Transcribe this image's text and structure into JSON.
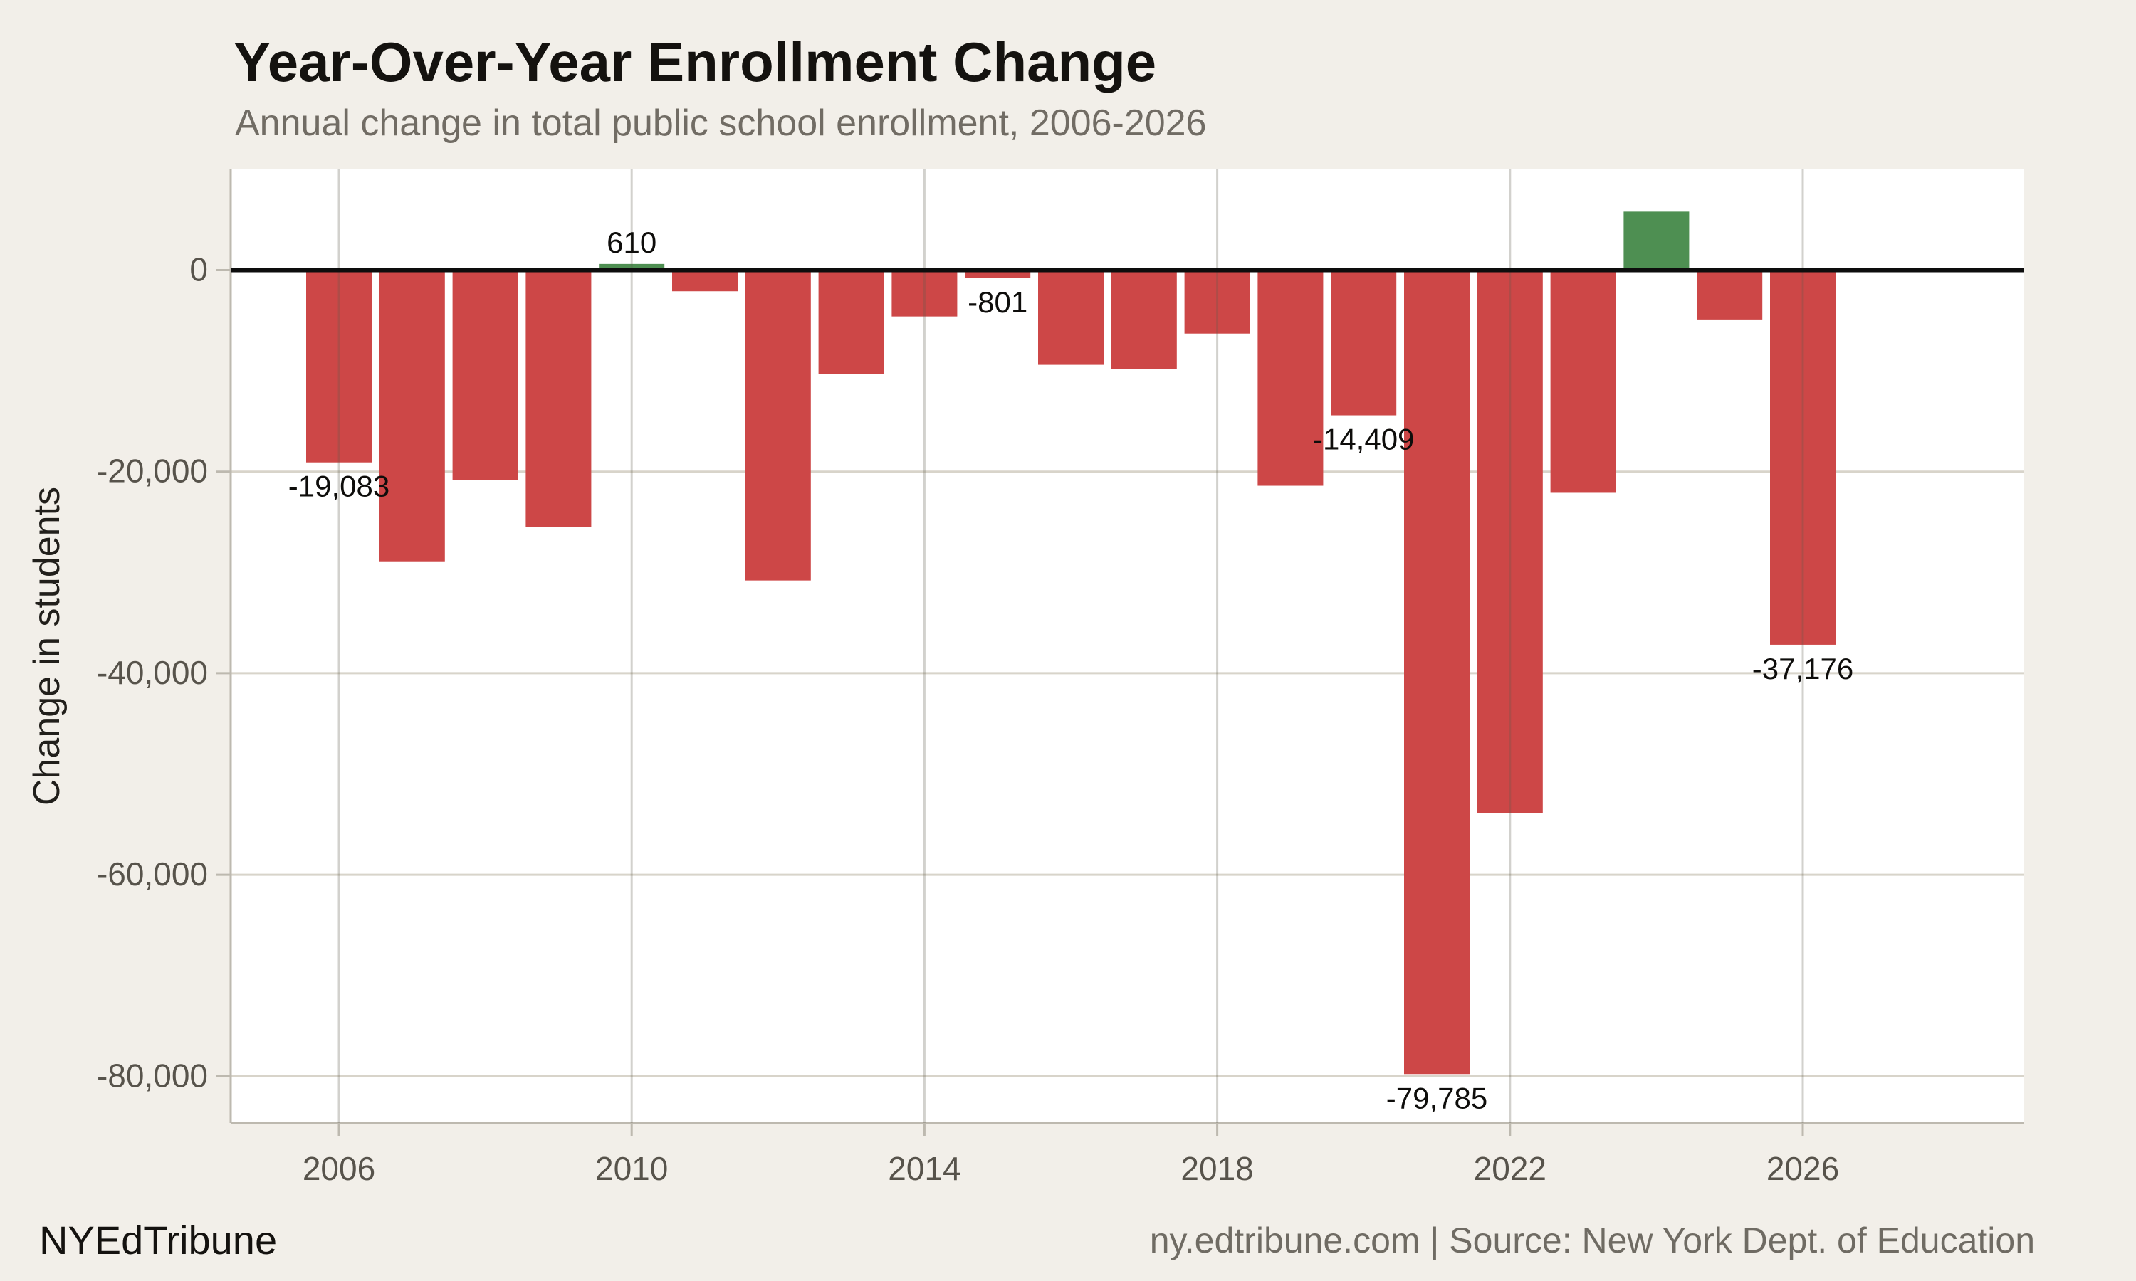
{
  "title": "Year-Over-Year Enrollment Change",
  "subtitle": "Annual change in total public school enrollment, 2006-2026",
  "footer": {
    "brand": "NYEdTribune",
    "source": "ny.edtribune.com | Source: New York Dept. of Education"
  },
  "chart_data": {
    "type": "bar",
    "title": "Year-Over-Year Enrollment Change",
    "subtitle": "Annual change in total public school enrollment, 2006-2026",
    "xlabel": "",
    "ylabel": "Change in students",
    "categories": [
      2006,
      2007,
      2008,
      2009,
      2010,
      2011,
      2012,
      2013,
      2014,
      2015,
      2016,
      2017,
      2018,
      2019,
      2020,
      2021,
      2022,
      2023,
      2024,
      2025,
      2026
    ],
    "values": [
      -19083,
      -28900,
      -20800,
      -25500,
      610,
      -2100,
      -30800,
      -10300,
      -4600,
      -801,
      -9400,
      -9800,
      -6300,
      -21400,
      -14409,
      -79785,
      -53900,
      -22100,
      5800,
      -4900,
      -37176
    ],
    "bar_labels": [
      {
        "year": 2006,
        "text": "-19,083"
      },
      {
        "year": 2010,
        "text": "610"
      },
      {
        "year": 2015,
        "text": "-801"
      },
      {
        "year": 2020,
        "text": "-14,409"
      },
      {
        "year": 2021,
        "text": "-79,785"
      },
      {
        "year": 2026,
        "text": "-37,176"
      }
    ],
    "x_ticks": [
      2006,
      2010,
      2014,
      2018,
      2022,
      2026
    ],
    "y_ticks": [
      {
        "value": 0,
        "label": "0"
      },
      {
        "value": -20000,
        "label": "-20,000"
      },
      {
        "value": -40000,
        "label": "-40,000"
      },
      {
        "value": -60000,
        "label": "-60,000"
      },
      {
        "value": -80000,
        "label": "-80,000"
      }
    ],
    "ylim": [
      -84700,
      10000
    ],
    "grid": true,
    "legend": "none",
    "colors": {
      "positive": "#4e8f52",
      "negative": "#cd4747",
      "zero_line": "#0d0d0d",
      "gridline": "#d8d4ca",
      "gridline_overlay": "rgba(95,88,76,0.28)",
      "axis": "#bdb9af",
      "tick_label": "#57534b",
      "value_label": "#0e0d0b",
      "plot_bg": "#ffffff",
      "page_bg": "#f2efe9"
    }
  }
}
